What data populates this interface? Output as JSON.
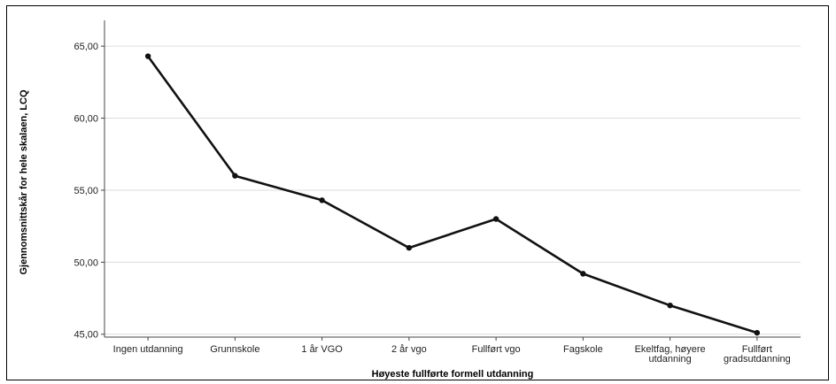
{
  "chart_data": {
    "type": "line",
    "title": "",
    "xlabel": "Høyeste fullførte formell utdanning",
    "ylabel": "Gjennomsnittskår for hele skalaen, LCQ",
    "categories": [
      [
        "Ingen utdanning"
      ],
      [
        "Grunnskole"
      ],
      [
        "1 år VGO"
      ],
      [
        "2 år vgo"
      ],
      [
        "Fullført vgo"
      ],
      [
        "Fagskole"
      ],
      [
        "Ekeltfag, høyere",
        "utdanning"
      ],
      [
        "Fullført",
        "gradsutdanning"
      ]
    ],
    "values": [
      64.3,
      56.0,
      54.3,
      51.0,
      53.0,
      49.2,
      47.0,
      45.1
    ],
    "ylim": [
      44.8,
      66.3
    ],
    "yticks": [
      45,
      50,
      55,
      60,
      65
    ],
    "ytick_labels": [
      "45,00",
      "50,00",
      "55,00",
      "60,00",
      "65,00"
    ],
    "grid": true,
    "legend": "none",
    "line_color": "#111111",
    "grid_color": "#dcdcdc"
  }
}
